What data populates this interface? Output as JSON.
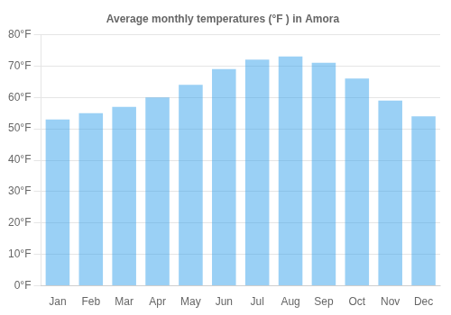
{
  "chart_data": {
    "type": "bar",
    "title": "Average monthly temperatures (°F ) in Amora",
    "categories": [
      "Jan",
      "Feb",
      "Mar",
      "Apr",
      "May",
      "Jun",
      "Jul",
      "Aug",
      "Sep",
      "Oct",
      "Nov",
      "Dec"
    ],
    "values": [
      53,
      55,
      57,
      60,
      64,
      69,
      72,
      73,
      71,
      66,
      59,
      54
    ],
    "ylim": [
      0,
      80
    ],
    "yticks": [
      {
        "value": 0,
        "label": "0°F"
      },
      {
        "value": 10,
        "label": "10°F"
      },
      {
        "value": 20,
        "label": "20°F"
      },
      {
        "value": 30,
        "label": "30°F"
      },
      {
        "value": 40,
        "label": "40°F"
      },
      {
        "value": 50,
        "label": "50°F"
      },
      {
        "value": 60,
        "label": "60°F"
      },
      {
        "value": 70,
        "label": "70°F"
      },
      {
        "value": 80,
        "label": "80°F"
      }
    ],
    "grid": true
  }
}
